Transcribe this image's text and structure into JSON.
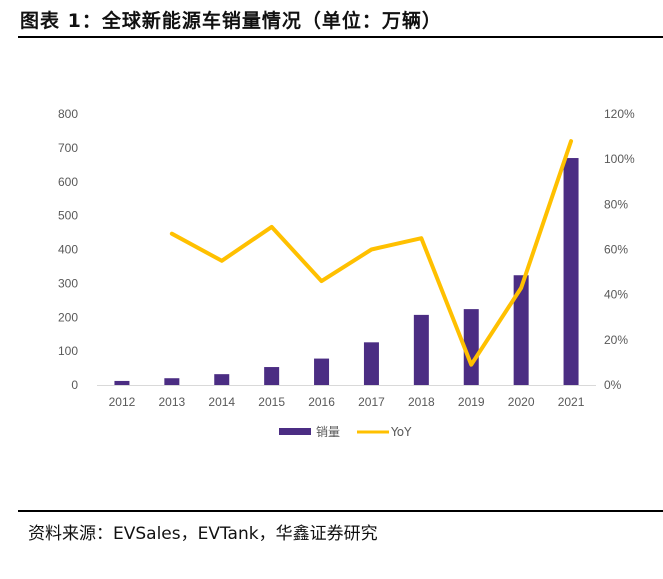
{
  "header": {
    "title": "图表 1：全球新能源车销量情况（单位：万辆）"
  },
  "footer": {
    "source": "资料来源：EVSales，EVTank，华鑫证券研究"
  },
  "chart_data": {
    "type": "bar",
    "title": "全球新能源车销量情况（单位：万辆）",
    "categories": [
      "2012",
      "2013",
      "2014",
      "2015",
      "2016",
      "2017",
      "2018",
      "2019",
      "2020",
      "2021"
    ],
    "series": [
      {
        "name": "销量",
        "type": "bar",
        "axis": "left",
        "color": "#4B2D83",
        "values": [
          12,
          20,
          32,
          53,
          78,
          126,
          207,
          224,
          324,
          670
        ]
      },
      {
        "name": "YoY",
        "type": "line",
        "axis": "right",
        "color": "#FFC000",
        "values": [
          null,
          67,
          55,
          70,
          46,
          60,
          65,
          9,
          43,
          108
        ]
      }
    ],
    "y_left": {
      "range": [
        0,
        800
      ],
      "ticks": [
        0,
        100,
        200,
        300,
        400,
        500,
        600,
        700,
        800
      ],
      "labels": [
        "0",
        "100",
        "200",
        "300",
        "400",
        "500",
        "600",
        "700",
        "800"
      ]
    },
    "y_right": {
      "range": [
        0,
        120
      ],
      "ticks": [
        0,
        20,
        40,
        60,
        80,
        100,
        120
      ],
      "labels": [
        "0%",
        "20%",
        "40%",
        "60%",
        "80%",
        "100%",
        "120%"
      ]
    },
    "xlabel": "",
    "ylabel": "",
    "grid": false,
    "legend": {
      "position": "bottom",
      "entries": [
        "销量",
        "YoY"
      ]
    }
  }
}
